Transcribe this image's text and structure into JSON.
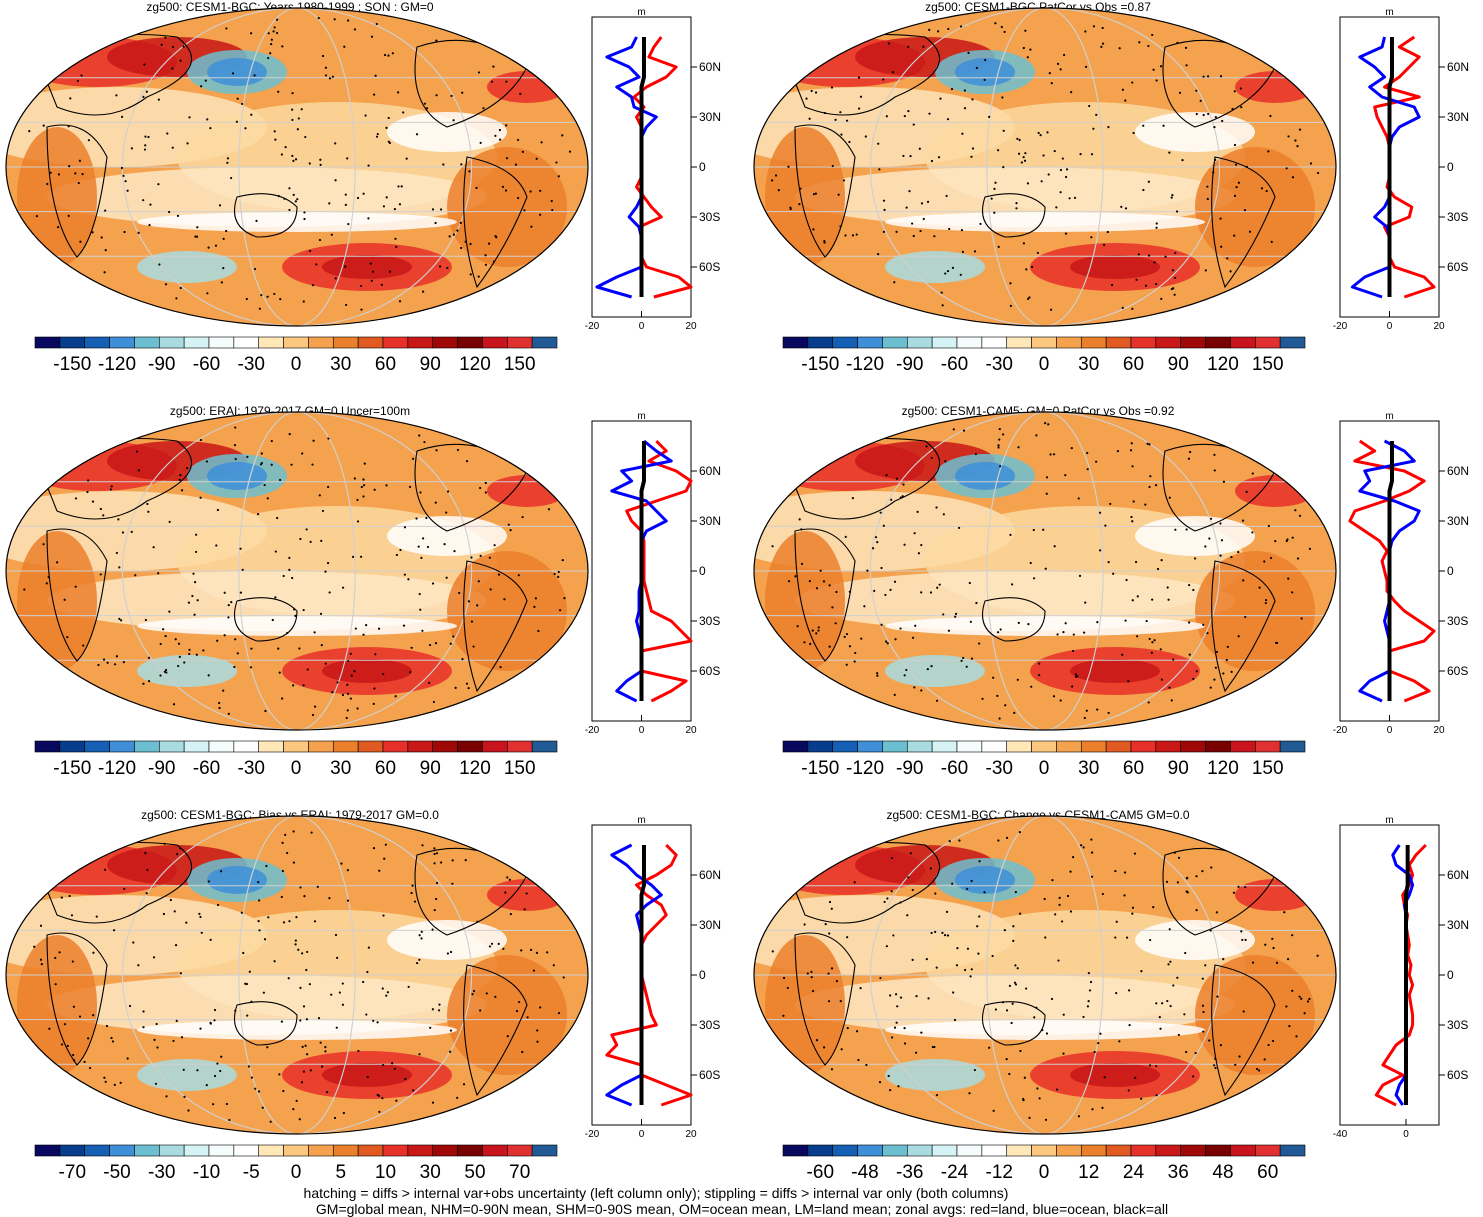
{
  "footnotes": [
    "hatching = diffs > internal var+obs uncertainty (left column only); stippling = diffs > internal var only (both columns)",
    "GM=global mean, NHM=0-90N mean, SHM=0-90S mean, OM=ocean mean, LM=land mean; zonal avgs: red=land, blue=ocean, black=all"
  ],
  "colorbar_palette": [
    "#08085e",
    "#083c8c",
    "#1560b4",
    "#3f8fd8",
    "#6cbfd0",
    "#a8dce0",
    "#d5f2f4",
    "#f4fcfc",
    "#ffffff",
    "#ffe7b8",
    "#fcc880",
    "#f5a24e",
    "#eb7f2c",
    "#e05a22",
    "#e8302a",
    "#c81818",
    "#a00808",
    "#780000",
    "#c8141c",
    "#e03030",
    "#225a96"
  ],
  "chart_data": [
    {
      "type": "heatmap",
      "title": "zg500: CESM1-BGC: Years 1980-1999 : SON : GM=0",
      "colorbar_ticks": [
        "-150",
        "-120",
        "-90",
        "-60",
        "-30",
        "0",
        "30",
        "60",
        "90",
        "120",
        "150"
      ],
      "zonal_profile": {
        "unit": "m",
        "xlim": [
          -20,
          20
        ],
        "xticks": [
          "-20",
          "0",
          "20"
        ],
        "lat_labels": [
          "60N",
          "30N",
          "0",
          "30S",
          "60S"
        ],
        "lat": [
          78,
          72,
          66,
          60,
          54,
          48,
          42,
          36,
          30,
          24,
          18,
          12,
          6,
          0,
          -6,
          -12,
          -18,
          -24,
          -30,
          -36,
          -42,
          -48,
          -54,
          -60,
          -66,
          -72,
          -78
        ],
        "land": [
          8,
          5,
          3,
          14,
          10,
          2,
          -3,
          1,
          -2,
          0,
          0,
          0,
          0,
          0,
          0,
          -2,
          1,
          4,
          8,
          -1,
          0,
          0,
          0,
          2,
          15,
          20,
          5
        ],
        "ocean": [
          -2,
          -4,
          -14,
          -5,
          -1,
          -10,
          -4,
          -3,
          6,
          2,
          0,
          0,
          0,
          0,
          0,
          0,
          0,
          -2,
          -5,
          -1,
          0,
          0,
          0,
          0,
          -10,
          -18,
          -4
        ],
        "all": [
          1,
          1,
          1,
          1,
          1,
          0,
          0,
          0,
          0,
          0,
          0,
          0,
          0,
          0,
          0,
          0,
          0,
          0,
          0,
          0,
          0,
          0,
          0,
          0,
          0,
          0,
          0
        ]
      }
    },
    {
      "type": "heatmap",
      "title": "zg500: CESM1-BGC PatCor vs Obs =0.87",
      "colorbar_ticks": [
        "-150",
        "-120",
        "-90",
        "-60",
        "-30",
        "0",
        "30",
        "60",
        "90",
        "120",
        "150"
      ],
      "zonal_profile": {
        "unit": "m",
        "xlim": [
          -20,
          20
        ],
        "xticks": [
          "-20",
          "0",
          "20"
        ],
        "lat_labels": [
          "60N",
          "30N",
          "0",
          "30S",
          "60S"
        ],
        "lat": [
          78,
          72,
          66,
          60,
          54,
          48,
          42,
          36,
          30,
          24,
          18,
          12,
          6,
          0,
          -6,
          -12,
          -18,
          -24,
          -30,
          -36,
          -42,
          -48,
          -54,
          -60,
          -66,
          -72,
          -78
        ],
        "land": [
          10,
          4,
          12,
          8,
          4,
          -2,
          12,
          -6,
          -5,
          -3,
          -1,
          0,
          0,
          0,
          0,
          -1,
          2,
          9,
          8,
          -2,
          0,
          0,
          0,
          2,
          14,
          18,
          6
        ],
        "ocean": [
          -2,
          -3,
          -12,
          -6,
          -2,
          -8,
          -3,
          10,
          12,
          4,
          1,
          0,
          0,
          0,
          0,
          0,
          0,
          -2,
          -6,
          -1,
          0,
          0,
          0,
          0,
          -10,
          -15,
          -3
        ],
        "all": [
          1,
          1,
          1,
          1,
          1,
          0,
          0,
          0,
          0,
          0,
          0,
          0,
          0,
          0,
          0,
          0,
          0,
          0,
          0,
          0,
          0,
          0,
          0,
          0,
          0,
          0,
          0
        ]
      }
    },
    {
      "type": "heatmap",
      "title": "zg500: ERAI: 1979-2017 GM=0 Uncer=100m",
      "colorbar_ticks": [
        "-150",
        "-120",
        "-90",
        "-60",
        "-30",
        "0",
        "30",
        "60",
        "90",
        "120",
        "150"
      ],
      "zonal_profile": {
        "unit": "m",
        "xlim": [
          -20,
          20
        ],
        "xticks": [
          "-20",
          "0",
          "20"
        ],
        "lat_labels": [
          "60N",
          "30N",
          "0",
          "30S",
          "60S"
        ],
        "lat": [
          78,
          72,
          66,
          60,
          54,
          48,
          42,
          36,
          30,
          24,
          18,
          12,
          6,
          0,
          -6,
          -12,
          -18,
          -24,
          -30,
          -36,
          -42,
          -48,
          -54,
          -60,
          -66,
          -72,
          -78
        ],
        "land": [
          6,
          10,
          3,
          14,
          20,
          18,
          6,
          -6,
          -4,
          0,
          1,
          1,
          1,
          1,
          1,
          2,
          3,
          4,
          12,
          16,
          20,
          0,
          0,
          0,
          18,
          12,
          4
        ],
        "ocean": [
          1,
          6,
          12,
          -8,
          -4,
          -12,
          2,
          6,
          10,
          2,
          0,
          0,
          0,
          0,
          0,
          -1,
          -1,
          -1,
          -2,
          -1,
          0,
          0,
          0,
          0,
          -6,
          -10,
          -2
        ],
        "all": [
          1,
          1,
          1,
          1,
          1,
          0,
          0,
          0,
          0,
          0,
          0,
          0,
          0,
          0,
          0,
          0,
          0,
          0,
          0,
          0,
          0,
          0,
          0,
          0,
          0,
          0,
          0
        ]
      }
    },
    {
      "type": "heatmap",
      "title": "zg500: CESM1-CAM5: GM=0 PatCor vs Obs =0.92",
      "colorbar_ticks": [
        "-150",
        "-120",
        "-90",
        "-60",
        "-30",
        "0",
        "30",
        "60",
        "90",
        "120",
        "150"
      ],
      "zonal_profile": {
        "unit": "m",
        "xlim": [
          -20,
          20
        ],
        "xticks": [
          "-20",
          "0",
          "20"
        ],
        "lat_labels": [
          "60N",
          "30N",
          "0",
          "30S",
          "60S"
        ],
        "lat": [
          78,
          72,
          66,
          60,
          54,
          48,
          42,
          36,
          30,
          24,
          18,
          12,
          6,
          0,
          -6,
          -12,
          -18,
          -24,
          -30,
          -36,
          -42,
          -48,
          -54,
          -60,
          -66,
          -72,
          -78
        ],
        "land": [
          -12,
          -6,
          -14,
          6,
          14,
          8,
          -2,
          -14,
          -16,
          -10,
          -4,
          -1,
          -3,
          -2,
          -1,
          -1,
          2,
          6,
          12,
          18,
          14,
          0,
          0,
          0,
          10,
          16,
          6
        ],
        "ocean": [
          -2,
          6,
          10,
          -10,
          -8,
          -12,
          2,
          12,
          10,
          4,
          1,
          0,
          0,
          0,
          0,
          0,
          0,
          -1,
          -2,
          -1,
          0,
          0,
          0,
          0,
          -8,
          -12,
          -3
        ],
        "all": [
          1,
          1,
          1,
          1,
          1,
          0,
          0,
          0,
          0,
          0,
          0,
          0,
          0,
          0,
          0,
          0,
          0,
          0,
          0,
          0,
          0,
          0,
          0,
          0,
          0,
          0,
          0
        ]
      }
    },
    {
      "type": "heatmap",
      "title": "zg500: CESM1-BGC: Bias vs ERAI: 1979-2017  GM=0.0",
      "colorbar_ticks": [
        "-70",
        "-50",
        "-30",
        "-10",
        "-5",
        "0",
        "5",
        "10",
        "30",
        "50",
        "70"
      ],
      "zonal_profile": {
        "unit": "m",
        "xlim": [
          -20,
          20
        ],
        "xticks": [
          "-20",
          "0",
          "20"
        ],
        "lat_labels": [
          "60N",
          "30N",
          "0",
          "30S",
          "60S"
        ],
        "lat": [
          78,
          72,
          66,
          60,
          54,
          48,
          42,
          36,
          30,
          24,
          18,
          12,
          6,
          0,
          -6,
          -12,
          -18,
          -24,
          -30,
          -36,
          -42,
          -48,
          -54,
          -60,
          -66,
          -72,
          -78
        ],
        "land": [
          10,
          14,
          12,
          6,
          -2,
          2,
          8,
          10,
          6,
          2,
          0,
          0,
          0,
          0,
          1,
          2,
          3,
          4,
          6,
          -12,
          -10,
          -14,
          0,
          0,
          10,
          20,
          8
        ],
        "ocean": [
          -4,
          -12,
          -6,
          -2,
          4,
          8,
          2,
          -2,
          -1,
          0,
          0,
          0,
          0,
          0,
          0,
          0,
          0,
          0,
          0,
          0,
          0,
          0,
          0,
          0,
          -8,
          -14,
          -4
        ],
        "all": [
          1,
          1,
          1,
          1,
          1,
          0,
          0,
          0,
          0,
          0,
          0,
          0,
          0,
          0,
          0,
          0,
          0,
          0,
          0,
          0,
          0,
          0,
          0,
          0,
          0,
          0,
          0
        ]
      }
    },
    {
      "type": "heatmap",
      "title": "zg500: CESM1-BGC: Change vs CESM1-CAM5 GM=0.0",
      "colorbar_ticks": [
        "-60",
        "-48",
        "-36",
        "-24",
        "-12",
        "0",
        "12",
        "24",
        "36",
        "48",
        "60"
      ],
      "zonal_profile": {
        "unit": "m",
        "xlim": [
          -40,
          20
        ],
        "xticks": [
          "-40",
          "0"
        ],
        "lat_labels": [
          "60N",
          "30N",
          "0",
          "30S",
          "60S"
        ],
        "lat": [
          78,
          72,
          66,
          60,
          54,
          48,
          42,
          36,
          30,
          24,
          18,
          12,
          6,
          0,
          -6,
          -12,
          -18,
          -24,
          -30,
          -36,
          -42,
          -48,
          -54,
          -60,
          -66,
          -72,
          -78
        ],
        "land": [
          12,
          6,
          2,
          4,
          2,
          -2,
          -1,
          1,
          0,
          1,
          2,
          1,
          3,
          2,
          4,
          2,
          3,
          4,
          4,
          2,
          -6,
          -10,
          -14,
          -2,
          -14,
          -18,
          -6
        ],
        "ocean": [
          -4,
          -8,
          -6,
          2,
          4,
          2,
          -1,
          0,
          0,
          0,
          0,
          0,
          0,
          0,
          0,
          0,
          0,
          0,
          0,
          0,
          0,
          0,
          0,
          0,
          -4,
          -6,
          -2
        ],
        "all": [
          1,
          1,
          1,
          1,
          1,
          0,
          0,
          0,
          0,
          0,
          0,
          0,
          0,
          0,
          0,
          0,
          0,
          0,
          0,
          0,
          0,
          0,
          0,
          0,
          0,
          0,
          0
        ]
      }
    }
  ]
}
